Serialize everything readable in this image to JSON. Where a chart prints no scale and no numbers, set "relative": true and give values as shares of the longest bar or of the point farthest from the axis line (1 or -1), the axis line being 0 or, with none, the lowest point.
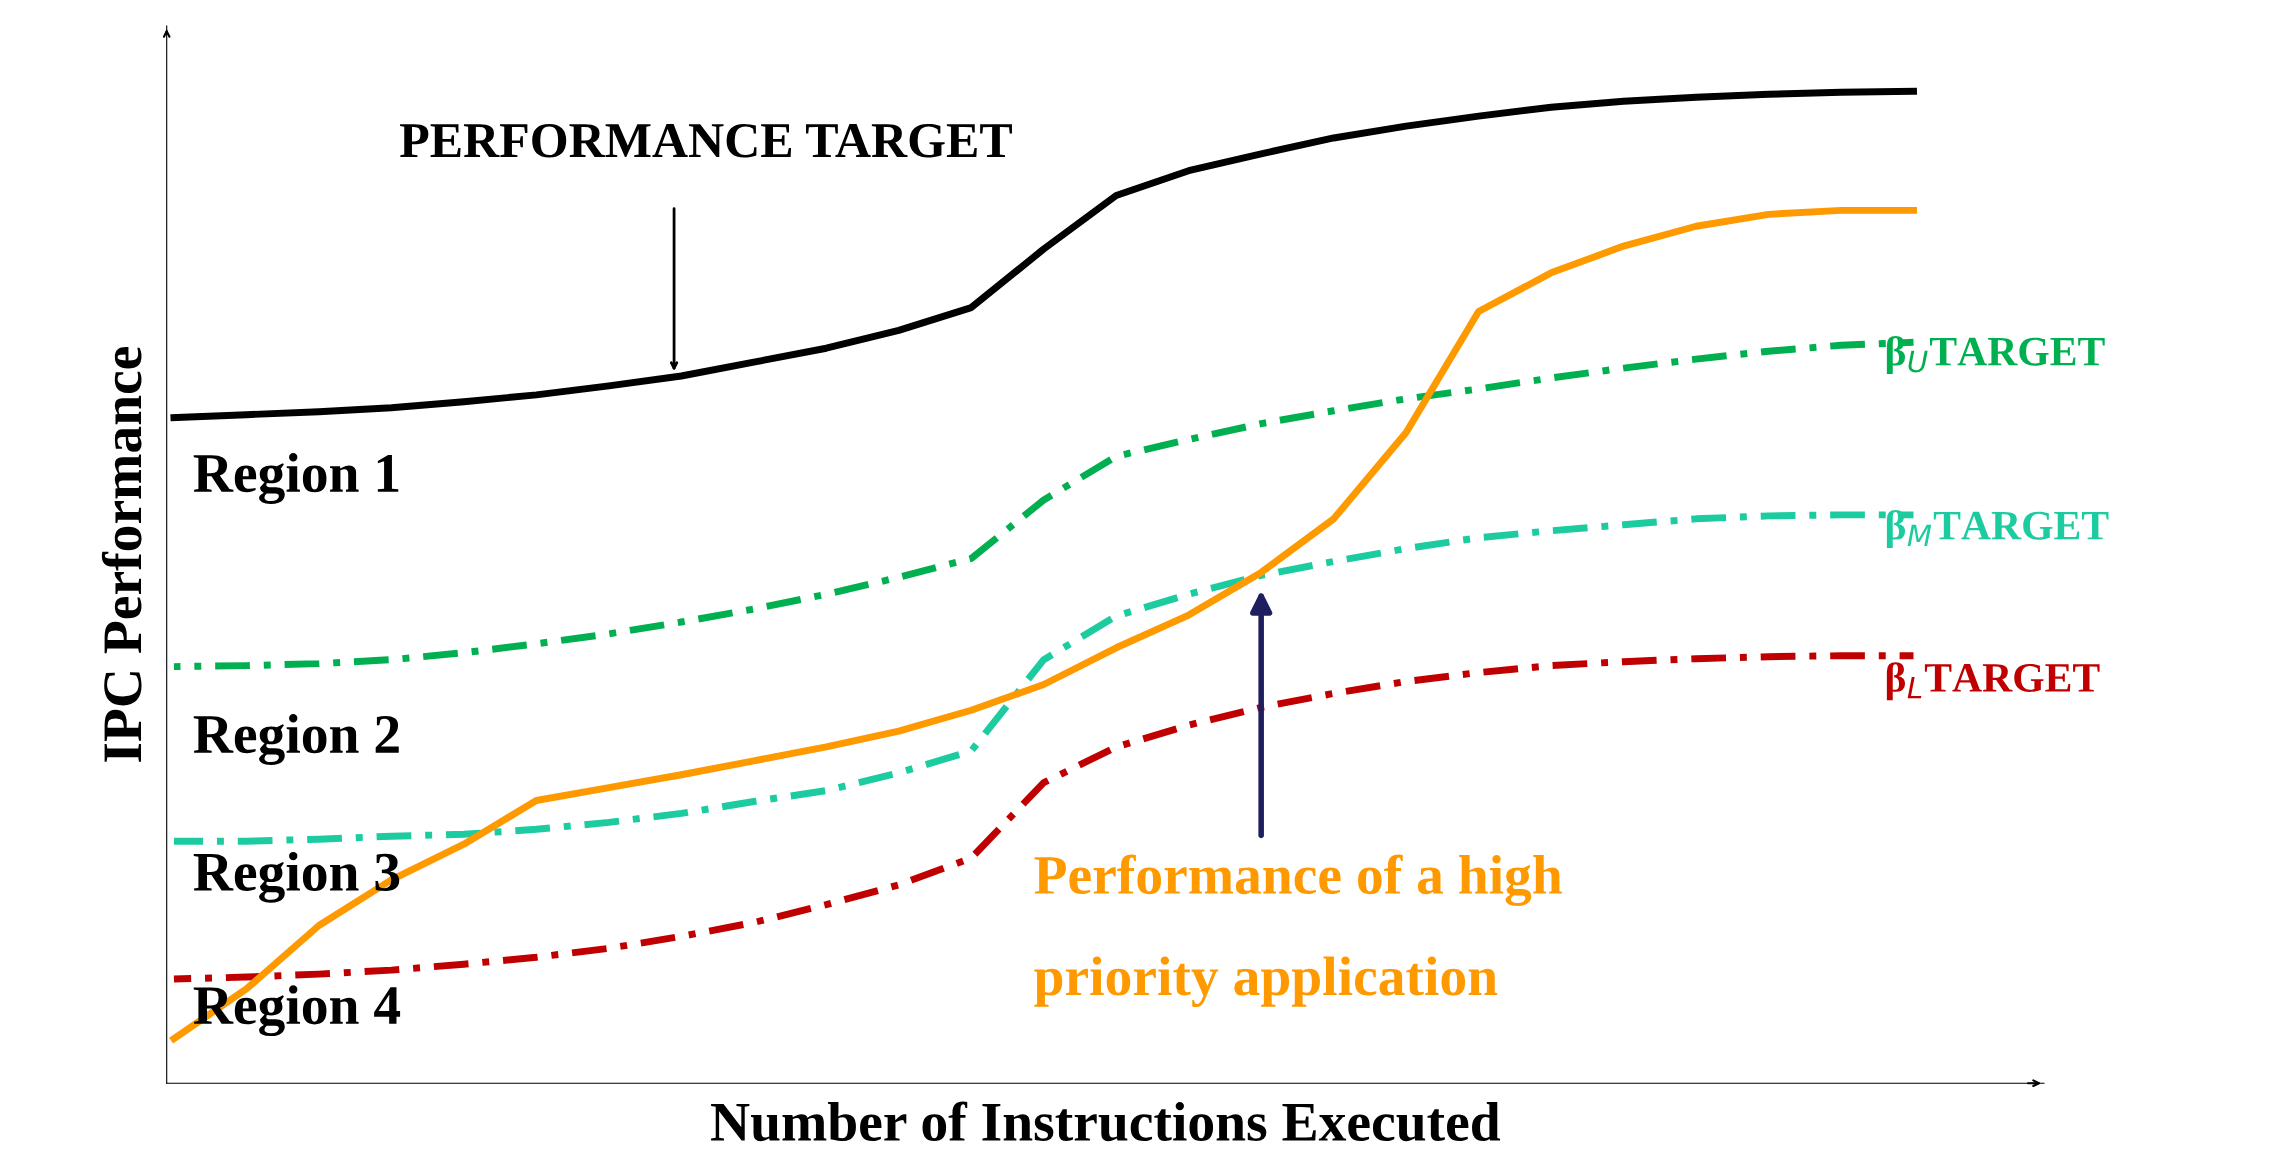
{
  "chart_data": {
    "type": "line",
    "relative": true,
    "xlabel": "Number of Instructions Executed",
    "ylabel": "IPC Performance",
    "categories": [
      null,
      null,
      null,
      null,
      null,
      null,
      null,
      null,
      null,
      null,
      null,
      null,
      null,
      null,
      null,
      null,
      null,
      null,
      null,
      null,
      null,
      null,
      null,
      null,
      null
    ],
    "series": [
      {
        "name": "PERFORMANCE TARGET",
        "color": "#000000",
        "line_style": "solid",
        "values": [
          0.671,
          0.674,
          0.677,
          0.681,
          0.687,
          0.694,
          0.703,
          0.713,
          0.727,
          0.741,
          0.759,
          0.782,
          0.841,
          0.895,
          0.92,
          0.937,
          0.953,
          0.965,
          0.975,
          0.984,
          0.99,
          0.994,
          0.997,
          0.999,
          1.0
        ]
      },
      {
        "name": "β$_{U}$TARGET",
        "color": "#00b050",
        "line_style": "dashdot",
        "values": [
          0.42,
          0.421,
          0.423,
          0.427,
          0.434,
          0.443,
          0.453,
          0.465,
          0.478,
          0.493,
          0.51,
          0.529,
          0.588,
          0.632,
          0.649,
          0.665,
          0.678,
          0.69,
          0.7,
          0.711,
          0.721,
          0.73,
          0.738,
          0.744,
          0.747
        ]
      },
      {
        "name": "β$_{M}$TARGET",
        "color": "#1ccca0",
        "line_style": "dashdot",
        "values": [
          0.244,
          0.244,
          0.246,
          0.249,
          0.251,
          0.256,
          0.263,
          0.272,
          0.284,
          0.295,
          0.313,
          0.335,
          0.427,
          0.471,
          0.493,
          0.512,
          0.526,
          0.539,
          0.55,
          0.557,
          0.563,
          0.569,
          0.572,
          0.573,
          0.573
        ]
      },
      {
        "name": "β$_{L}$TARGET",
        "color": "#c00000",
        "line_style": "dashdot",
        "values": [
          0.105,
          0.107,
          0.11,
          0.114,
          0.12,
          0.127,
          0.136,
          0.148,
          0.162,
          0.18,
          0.2,
          0.227,
          0.303,
          0.339,
          0.361,
          0.379,
          0.393,
          0.405,
          0.414,
          0.421,
          0.425,
          0.428,
          0.43,
          0.431,
          0.431
        ]
      },
      {
        "name": "Performance of a high priority application",
        "color": "#ff9900",
        "line_style": "solid",
        "values": [
          0.045,
          0.095,
          0.159,
          0.205,
          0.241,
          0.285,
          0.298,
          0.311,
          0.325,
          0.339,
          0.355,
          0.376,
          0.402,
          0.439,
          0.472,
          0.515,
          0.569,
          0.656,
          0.778,
          0.817,
          0.844,
          0.864,
          0.876,
          0.88,
          0.88
        ]
      }
    ],
    "annotations": [
      "Region 1",
      "Region 2",
      "Region 3",
      "Region 4"
    ],
    "legend": false
  }
}
